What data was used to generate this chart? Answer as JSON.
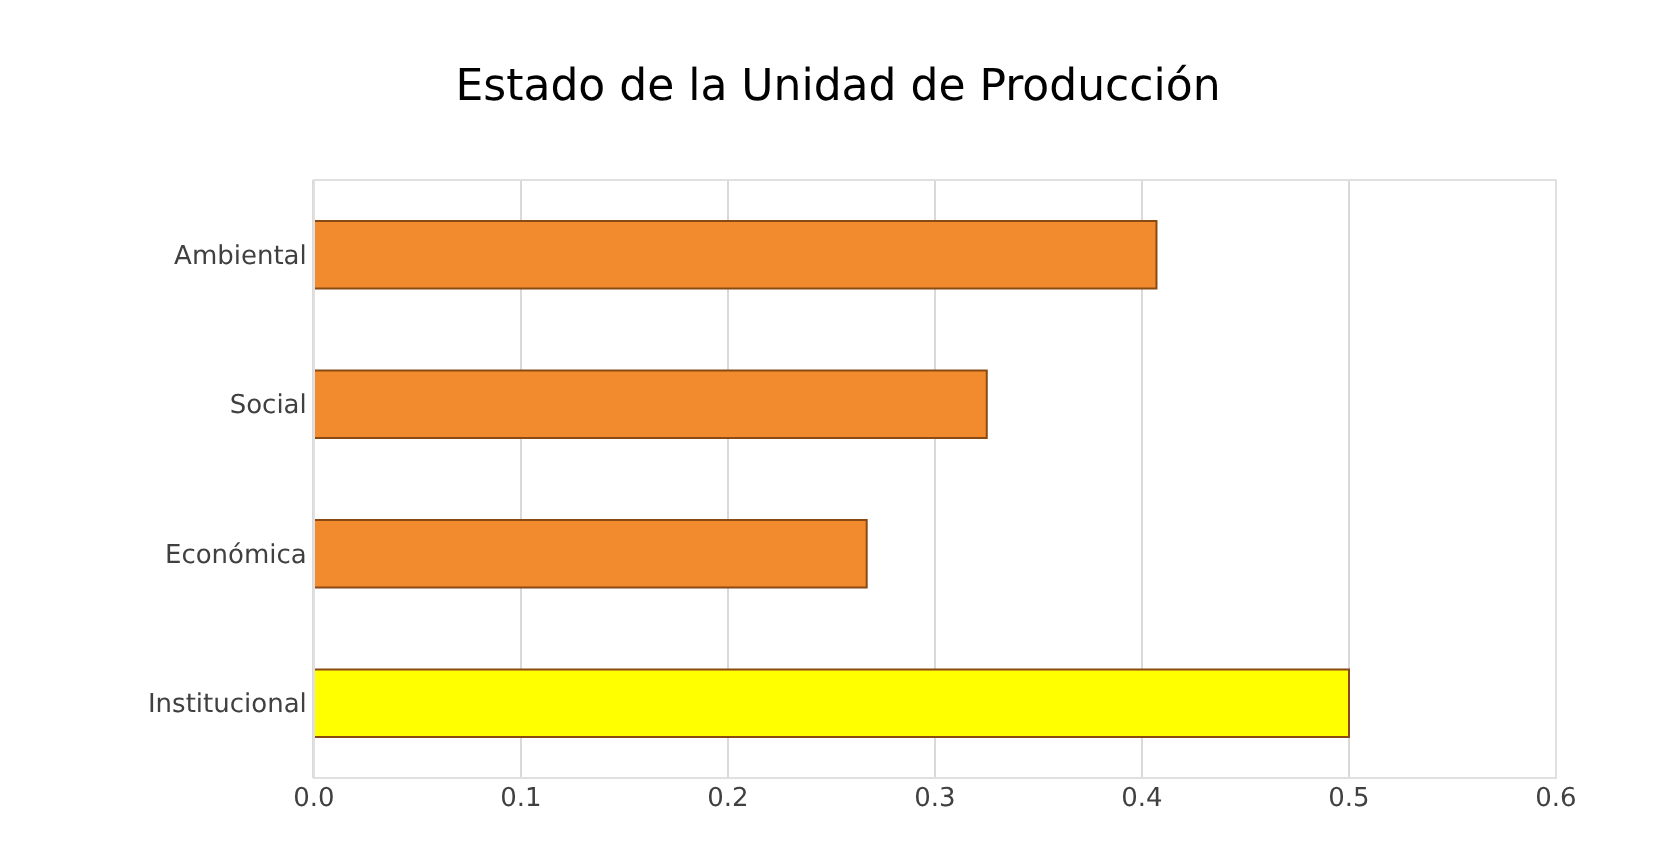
{
  "chart_data": {
    "type": "bar",
    "orientation": "horizontal",
    "title": "Estado de la Unidad de Producción",
    "categories": [
      "Ambiental",
      "Social",
      "Económica",
      "Institucional"
    ],
    "values": [
      0.407,
      0.325,
      0.267,
      0.5
    ],
    "colors": [
      "#f28a2e",
      "#f28a2e",
      "#f28a2e",
      "#ffff00"
    ],
    "xlim": [
      0,
      0.6
    ],
    "xticks": [
      {
        "value": 0,
        "label": "0.0"
      },
      0.1,
      0.2,
      0.3,
      0.4,
      0.5,
      0.6
    ],
    "grid": "x"
  }
}
